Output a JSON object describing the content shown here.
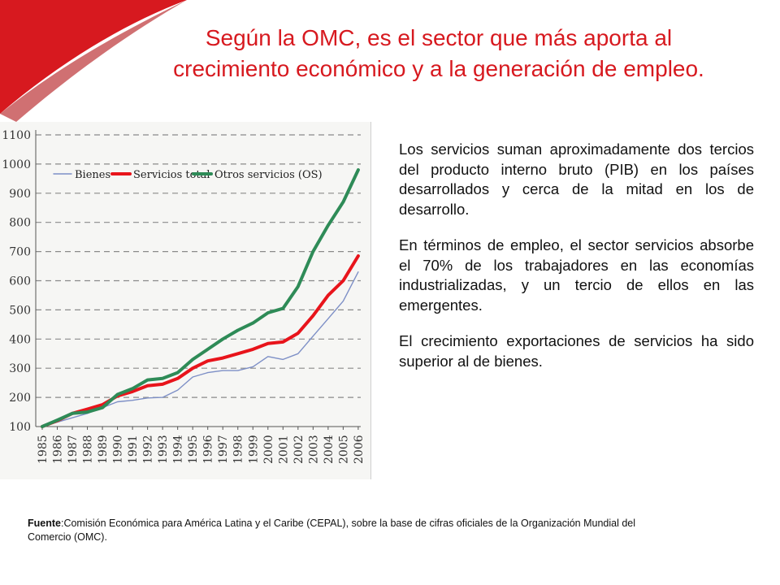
{
  "slide": {
    "title_line1": "Según la OMC, es el sector que más aporta al",
    "title_line2": "crecimiento económico y a la generación de empleo.",
    "paragraphs": [
      "Los servicios suman aproximadamente dos tercios del producto interno bruto (PIB) en los países desarrollados y cerca de la mitad en los de desarrollo.",
      "En términos de empleo, el sector servicios absorbe el 70% de los trabajadores en las economías industrializadas, y un tercio de ellos en las emergentes.",
      "El crecimiento exportaciones de servicios ha sido superior al de bienes."
    ],
    "source_label": "Fuente",
    "source_text": ":Comisión Económica para América Latina y el Caribe (CEPAL), sobre la base de cifras oficiales de la Organización Mundial del Comercio (OMC).",
    "accent_color": "#d7191f"
  },
  "chart_data": {
    "type": "line",
    "title": "",
    "xlabel": "",
    "ylabel": "",
    "ylim": [
      100,
      1100
    ],
    "yticks": [
      "100",
      "200",
      "300",
      "400",
      "500",
      "600",
      "700",
      "800",
      "900",
      "1000",
      "1100"
    ],
    "categories": [
      "1985",
      "1986",
      "1987",
      "1988",
      "1989",
      "1990",
      "1991",
      "1992",
      "1993",
      "1994",
      "1995",
      "1996",
      "1997",
      "1998",
      "1999",
      "2000",
      "2001",
      "2002",
      "2003",
      "2004",
      "2005",
      "2006"
    ],
    "legend_position": "top",
    "grid": "dashed horizontal",
    "series": [
      {
        "name": "Bienes",
        "color": "#7d8fc6",
        "values": [
          100,
          115,
          130,
          145,
          165,
          185,
          190,
          198,
          200,
          225,
          270,
          285,
          292,
          292,
          305,
          340,
          330,
          350,
          410,
          470,
          530,
          630
        ]
      },
      {
        "name": "Servicios total",
        "color": "#e8141b",
        "values": [
          100,
          120,
          145,
          160,
          175,
          205,
          220,
          240,
          245,
          265,
          300,
          325,
          335,
          350,
          365,
          385,
          390,
          420,
          480,
          550,
          600,
          685
        ]
      },
      {
        "name": "Otros servicios (OS)",
        "color": "#2e8b57",
        "values": [
          100,
          122,
          145,
          150,
          165,
          210,
          230,
          260,
          265,
          285,
          330,
          365,
          400,
          430,
          455,
          490,
          505,
          580,
          700,
          790,
          870,
          980
        ]
      }
    ]
  }
}
